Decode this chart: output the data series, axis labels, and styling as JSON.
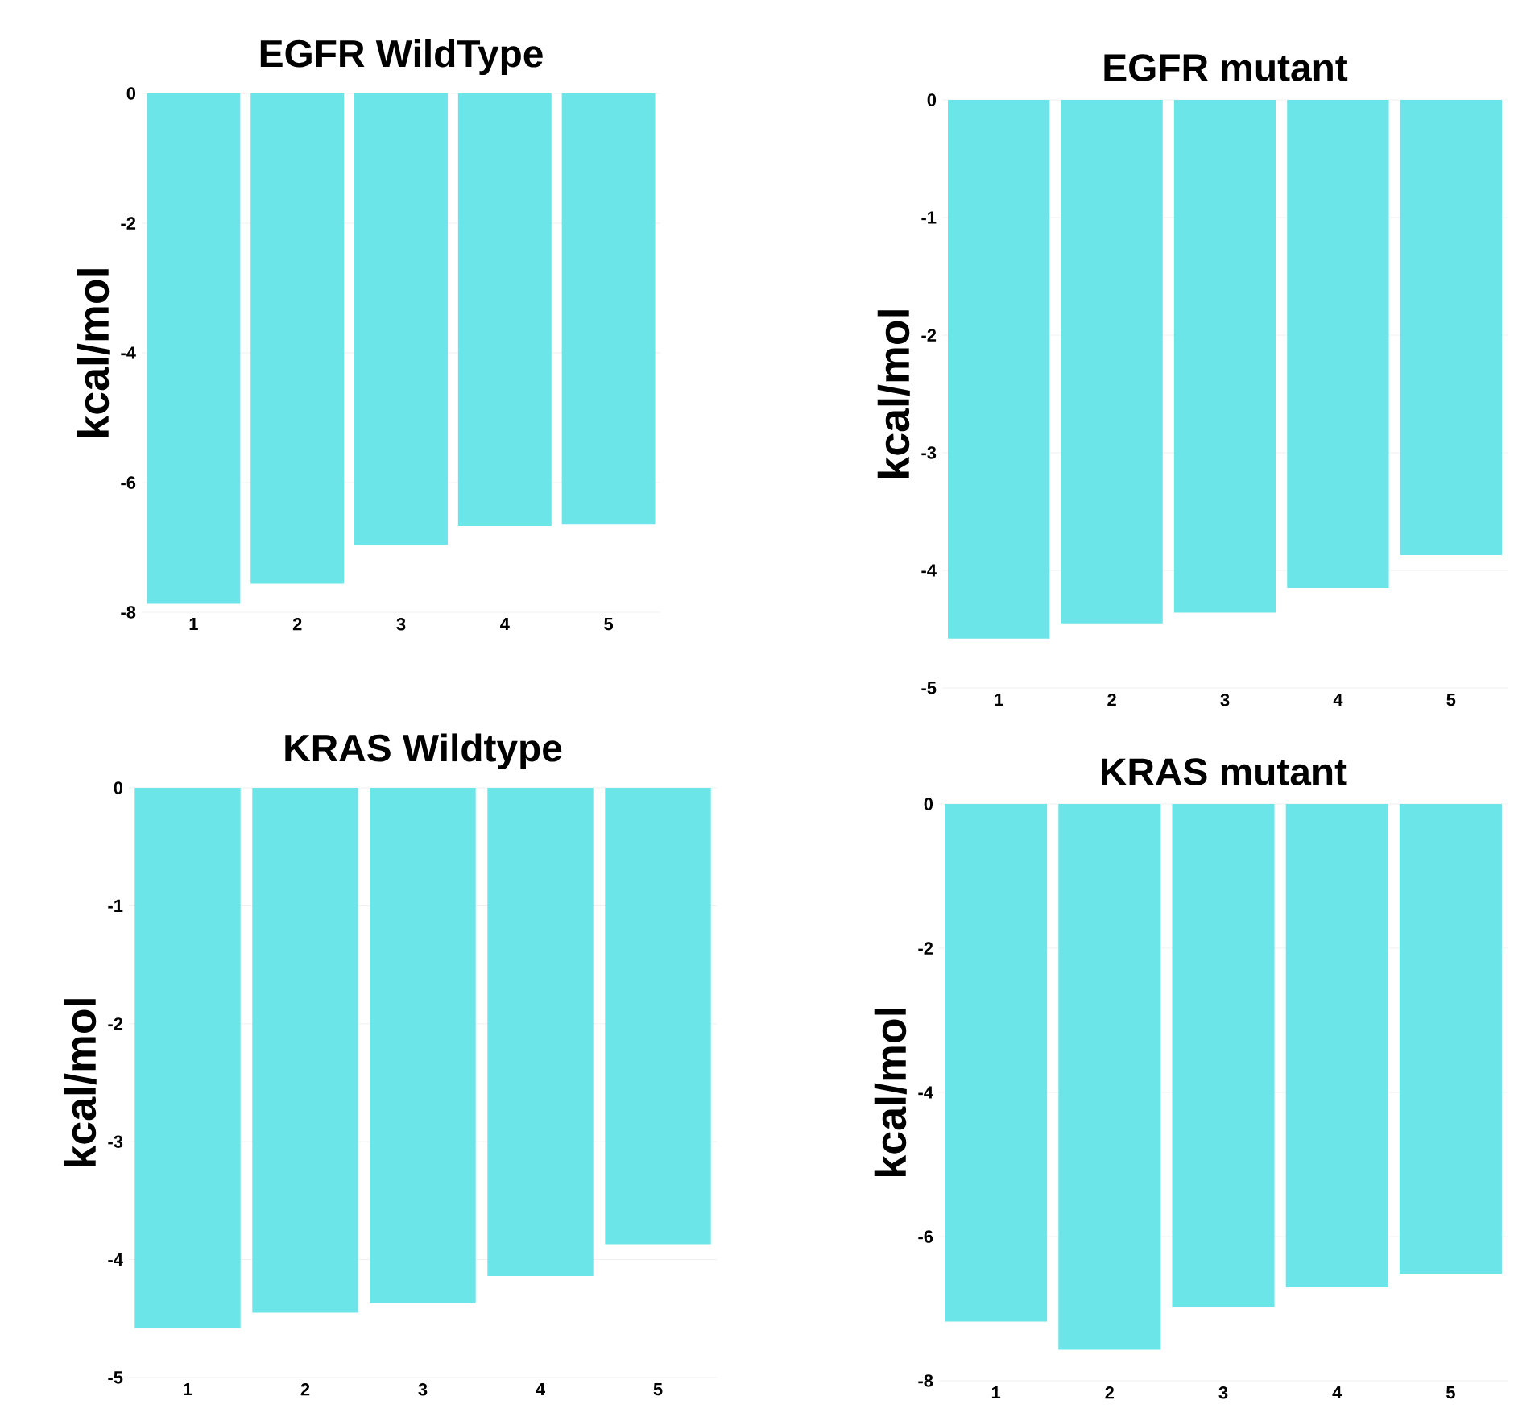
{
  "chart_data": [
    {
      "type": "bar",
      "title": "EGFR WildType",
      "ylabel": "kcal/mol",
      "categories": [
        "1",
        "2",
        "3",
        "4",
        "5"
      ],
      "values": [
        -7.87,
        -7.56,
        -6.96,
        -6.67,
        -6.65
      ],
      "color": "#6ce5e8",
      "ylim": [
        -8,
        0
      ],
      "yticks": [
        -8,
        -6,
        -4,
        -2,
        0
      ],
      "grid": "y"
    },
    {
      "type": "bar",
      "title": "EGFR mutant",
      "ylabel": "kcal/mol",
      "categories": [
        "1",
        "2",
        "3",
        "4",
        "5"
      ],
      "values": [
        -4.58,
        -4.45,
        -4.36,
        -4.15,
        -3.87
      ],
      "color": "#6ce5e8",
      "ylim": [
        -5,
        0
      ],
      "yticks": [
        -5,
        -4,
        -3,
        -2,
        -1,
        0
      ],
      "grid": "y"
    },
    {
      "type": "bar",
      "title": "KRAS Wildtype",
      "ylabel": "kcal/mol",
      "categories": [
        "1",
        "2",
        "3",
        "4",
        "5"
      ],
      "values": [
        -4.58,
        -4.45,
        -4.37,
        -4.14,
        -3.87
      ],
      "color": "#6ce5e8",
      "ylim": [
        -5,
        0
      ],
      "yticks": [
        -5,
        -4,
        -3,
        -2,
        -1,
        0
      ],
      "grid": "y"
    },
    {
      "type": "bar",
      "title": "KRAS mutant",
      "ylabel": "kcal/mol",
      "categories": [
        "1",
        "2",
        "3",
        "4",
        "5"
      ],
      "values": [
        -7.18,
        -7.57,
        -6.98,
        -6.7,
        -6.52
      ],
      "color": "#6ce5e8",
      "ylim": [
        -8,
        0
      ],
      "yticks": [
        -8,
        -6,
        -4,
        -2,
        0
      ],
      "grid": "y"
    }
  ]
}
